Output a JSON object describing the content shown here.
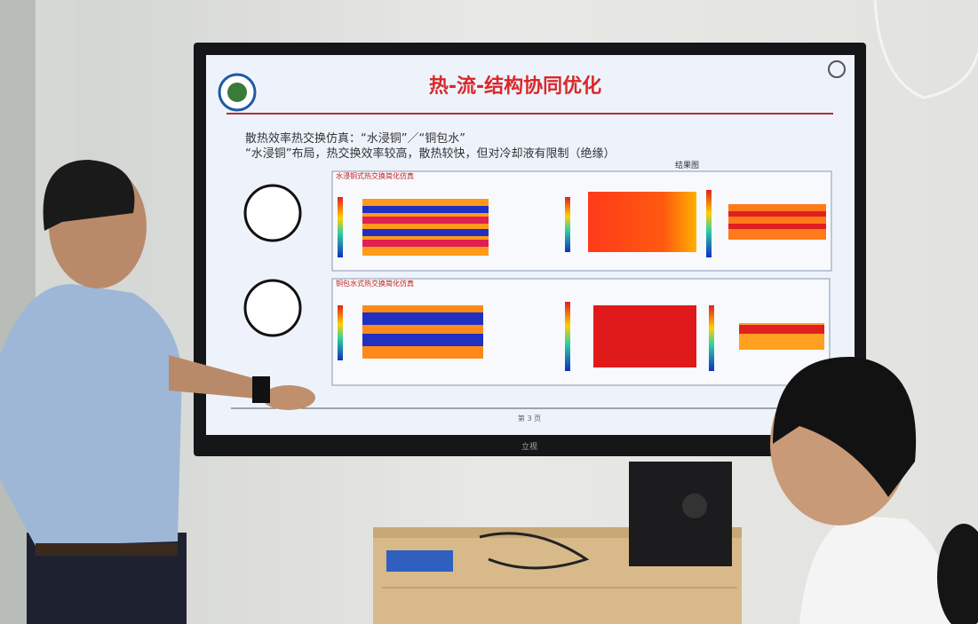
{
  "slide": {
    "title": "热-流-结构协同优化",
    "line1": "散热效率热交换仿真：“水浸铜”／“铜包水”",
    "line2": "“水浸铜”布局，热交换效率较高，散热较快，但对冷却液有限制（绝缘）",
    "results_label": "结果图",
    "panel1_title": "水浸铜式热交换简化仿真",
    "panel2_title": "铜包水式热交换简化仿真",
    "page": "第 3 页"
  },
  "tv_brand": "立视"
}
